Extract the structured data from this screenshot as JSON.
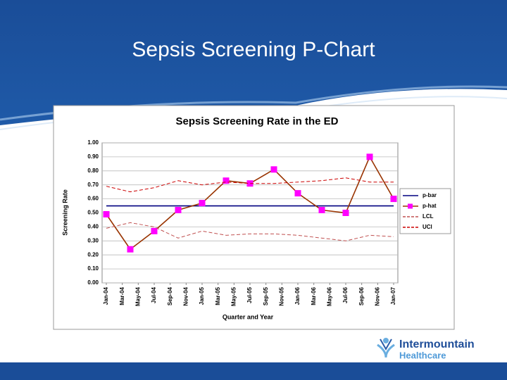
{
  "header": {
    "title": "Sepsis Screening P-Chart"
  },
  "logo": {
    "line1": "Intermountain",
    "line2": "Healthcare"
  },
  "chart_data": {
    "type": "line",
    "title": "Sepsis Screening Rate in the ED",
    "x_label": "Quarter and Year",
    "y_label": "Screening Rate",
    "x": [
      "2004-01",
      "2004-04",
      "2004-07",
      "2004-10",
      "2005-01",
      "2005-04",
      "2005-07",
      "2005-10",
      "2006-01",
      "2006-04",
      "2006-07",
      "2006-10",
      "2007-01"
    ],
    "series": [
      {
        "name": "p-bar",
        "color": "#000080",
        "dash": false,
        "marker": false,
        "values": [
          0.55,
          0.55,
          0.55,
          0.55,
          0.55,
          0.55,
          0.55,
          0.55,
          0.55,
          0.55,
          0.55,
          0.55,
          0.55
        ]
      },
      {
        "name": "p-hat",
        "color": "#993300",
        "marker_color": "#ff00ff",
        "dash": false,
        "marker": true,
        "values": [
          0.49,
          0.24,
          0.37,
          0.52,
          0.57,
          0.73,
          0.71,
          0.81,
          0.64,
          0.52,
          0.5,
          0.9,
          0.6
        ]
      },
      {
        "name": "LCL",
        "color": "#c05050",
        "dash": true,
        "marker": false,
        "values": [
          0.39,
          0.43,
          0.4,
          0.32,
          0.37,
          0.34,
          0.35,
          0.35,
          0.34,
          0.32,
          0.3,
          0.34,
          0.33
        ]
      },
      {
        "name": "UCl",
        "color": "#cc0000",
        "dash": true,
        "marker": false,
        "values": [
          0.69,
          0.65,
          0.68,
          0.73,
          0.7,
          0.72,
          0.71,
          0.71,
          0.72,
          0.73,
          0.75,
          0.72,
          0.72
        ]
      }
    ],
    "xlim": [
      "2004-01",
      "2007-01"
    ],
    "xticks": [
      {
        "value": "2004-01",
        "label": "Jan-04"
      },
      {
        "value": "2004-03",
        "label": "Mar-04"
      },
      {
        "value": "2004-05",
        "label": "May-04"
      },
      {
        "value": "2004-07",
        "label": "Jul-04"
      },
      {
        "value": "2004-09",
        "label": "Sep-04"
      },
      {
        "value": "2004-11",
        "label": "Nov-04"
      },
      {
        "value": "2005-01",
        "label": "Jan-05"
      },
      {
        "value": "2005-03",
        "label": "Mar-05"
      },
      {
        "value": "2005-05",
        "label": "May-05"
      },
      {
        "value": "2005-07",
        "label": "Jul-05"
      },
      {
        "value": "2005-09",
        "label": "Sep-05"
      },
      {
        "value": "2005-11",
        "label": "Nov-05"
      },
      {
        "value": "2006-01",
        "label": "Jan-06"
      },
      {
        "value": "2006-03",
        "label": "Mar-06"
      },
      {
        "value": "2006-05",
        "label": "May-06"
      },
      {
        "value": "2006-07",
        "label": "Jul-06"
      },
      {
        "value": "2006-09",
        "label": "Sep-06"
      },
      {
        "value": "2006-11",
        "label": "Nov-06"
      },
      {
        "value": "2007-01",
        "label": "Jan-07"
      }
    ],
    "ylim": [
      0,
      1
    ],
    "yticks": [
      {
        "value": 0,
        "label": "0.00"
      },
      {
        "value": 0.1,
        "label": "0.10"
      },
      {
        "value": 0.2,
        "label": "0.20"
      },
      {
        "value": 0.3,
        "label": "0.30"
      },
      {
        "value": 0.4,
        "label": "0.40"
      },
      {
        "value": 0.5,
        "label": "0.50"
      },
      {
        "value": 0.6,
        "label": "0.60"
      },
      {
        "value": 0.7,
        "label": "0.70"
      },
      {
        "value": 0.8,
        "label": "0.80"
      },
      {
        "value": 0.9,
        "label": "0.90"
      },
      {
        "value": 1,
        "label": "1.00"
      }
    ],
    "grid": true,
    "legend": "right"
  }
}
